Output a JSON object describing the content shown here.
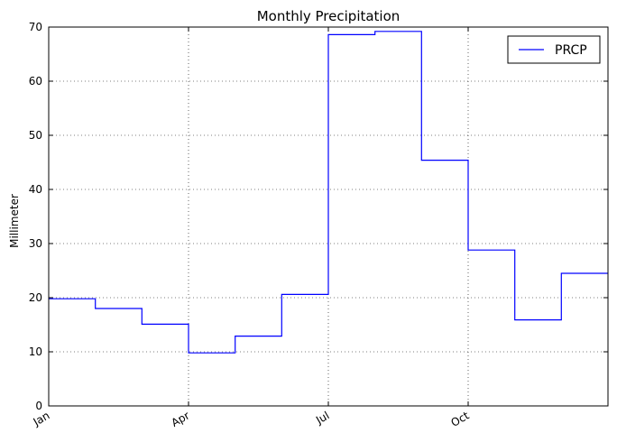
{
  "chart_data": {
    "type": "line",
    "title": "Monthly Precipitation",
    "xlabel": "",
    "ylabel": "Millimeter",
    "ylim": [
      0,
      70
    ],
    "yticks": [
      0,
      10,
      20,
      30,
      40,
      50,
      60,
      70
    ],
    "xticks": [
      {
        "label": "Jan",
        "month": 1
      },
      {
        "label": "Apr",
        "month": 4
      },
      {
        "label": "Jul",
        "month": 7
      },
      {
        "label": "Oct",
        "month": 10
      }
    ],
    "grid": true,
    "legend_position": "top-right",
    "series": [
      {
        "name": "PRCP",
        "color": "#0000ff",
        "drawstyle": "steps",
        "months": [
          "Jan",
          "Feb",
          "Mar",
          "Apr",
          "May",
          "Jun",
          "Jul",
          "Aug",
          "Sep",
          "Oct",
          "Nov",
          "Dec"
        ],
        "values": [
          19.8,
          18.0,
          15.1,
          9.8,
          12.9,
          20.6,
          68.6,
          69.2,
          45.4,
          28.8,
          15.9,
          24.5
        ]
      }
    ]
  }
}
